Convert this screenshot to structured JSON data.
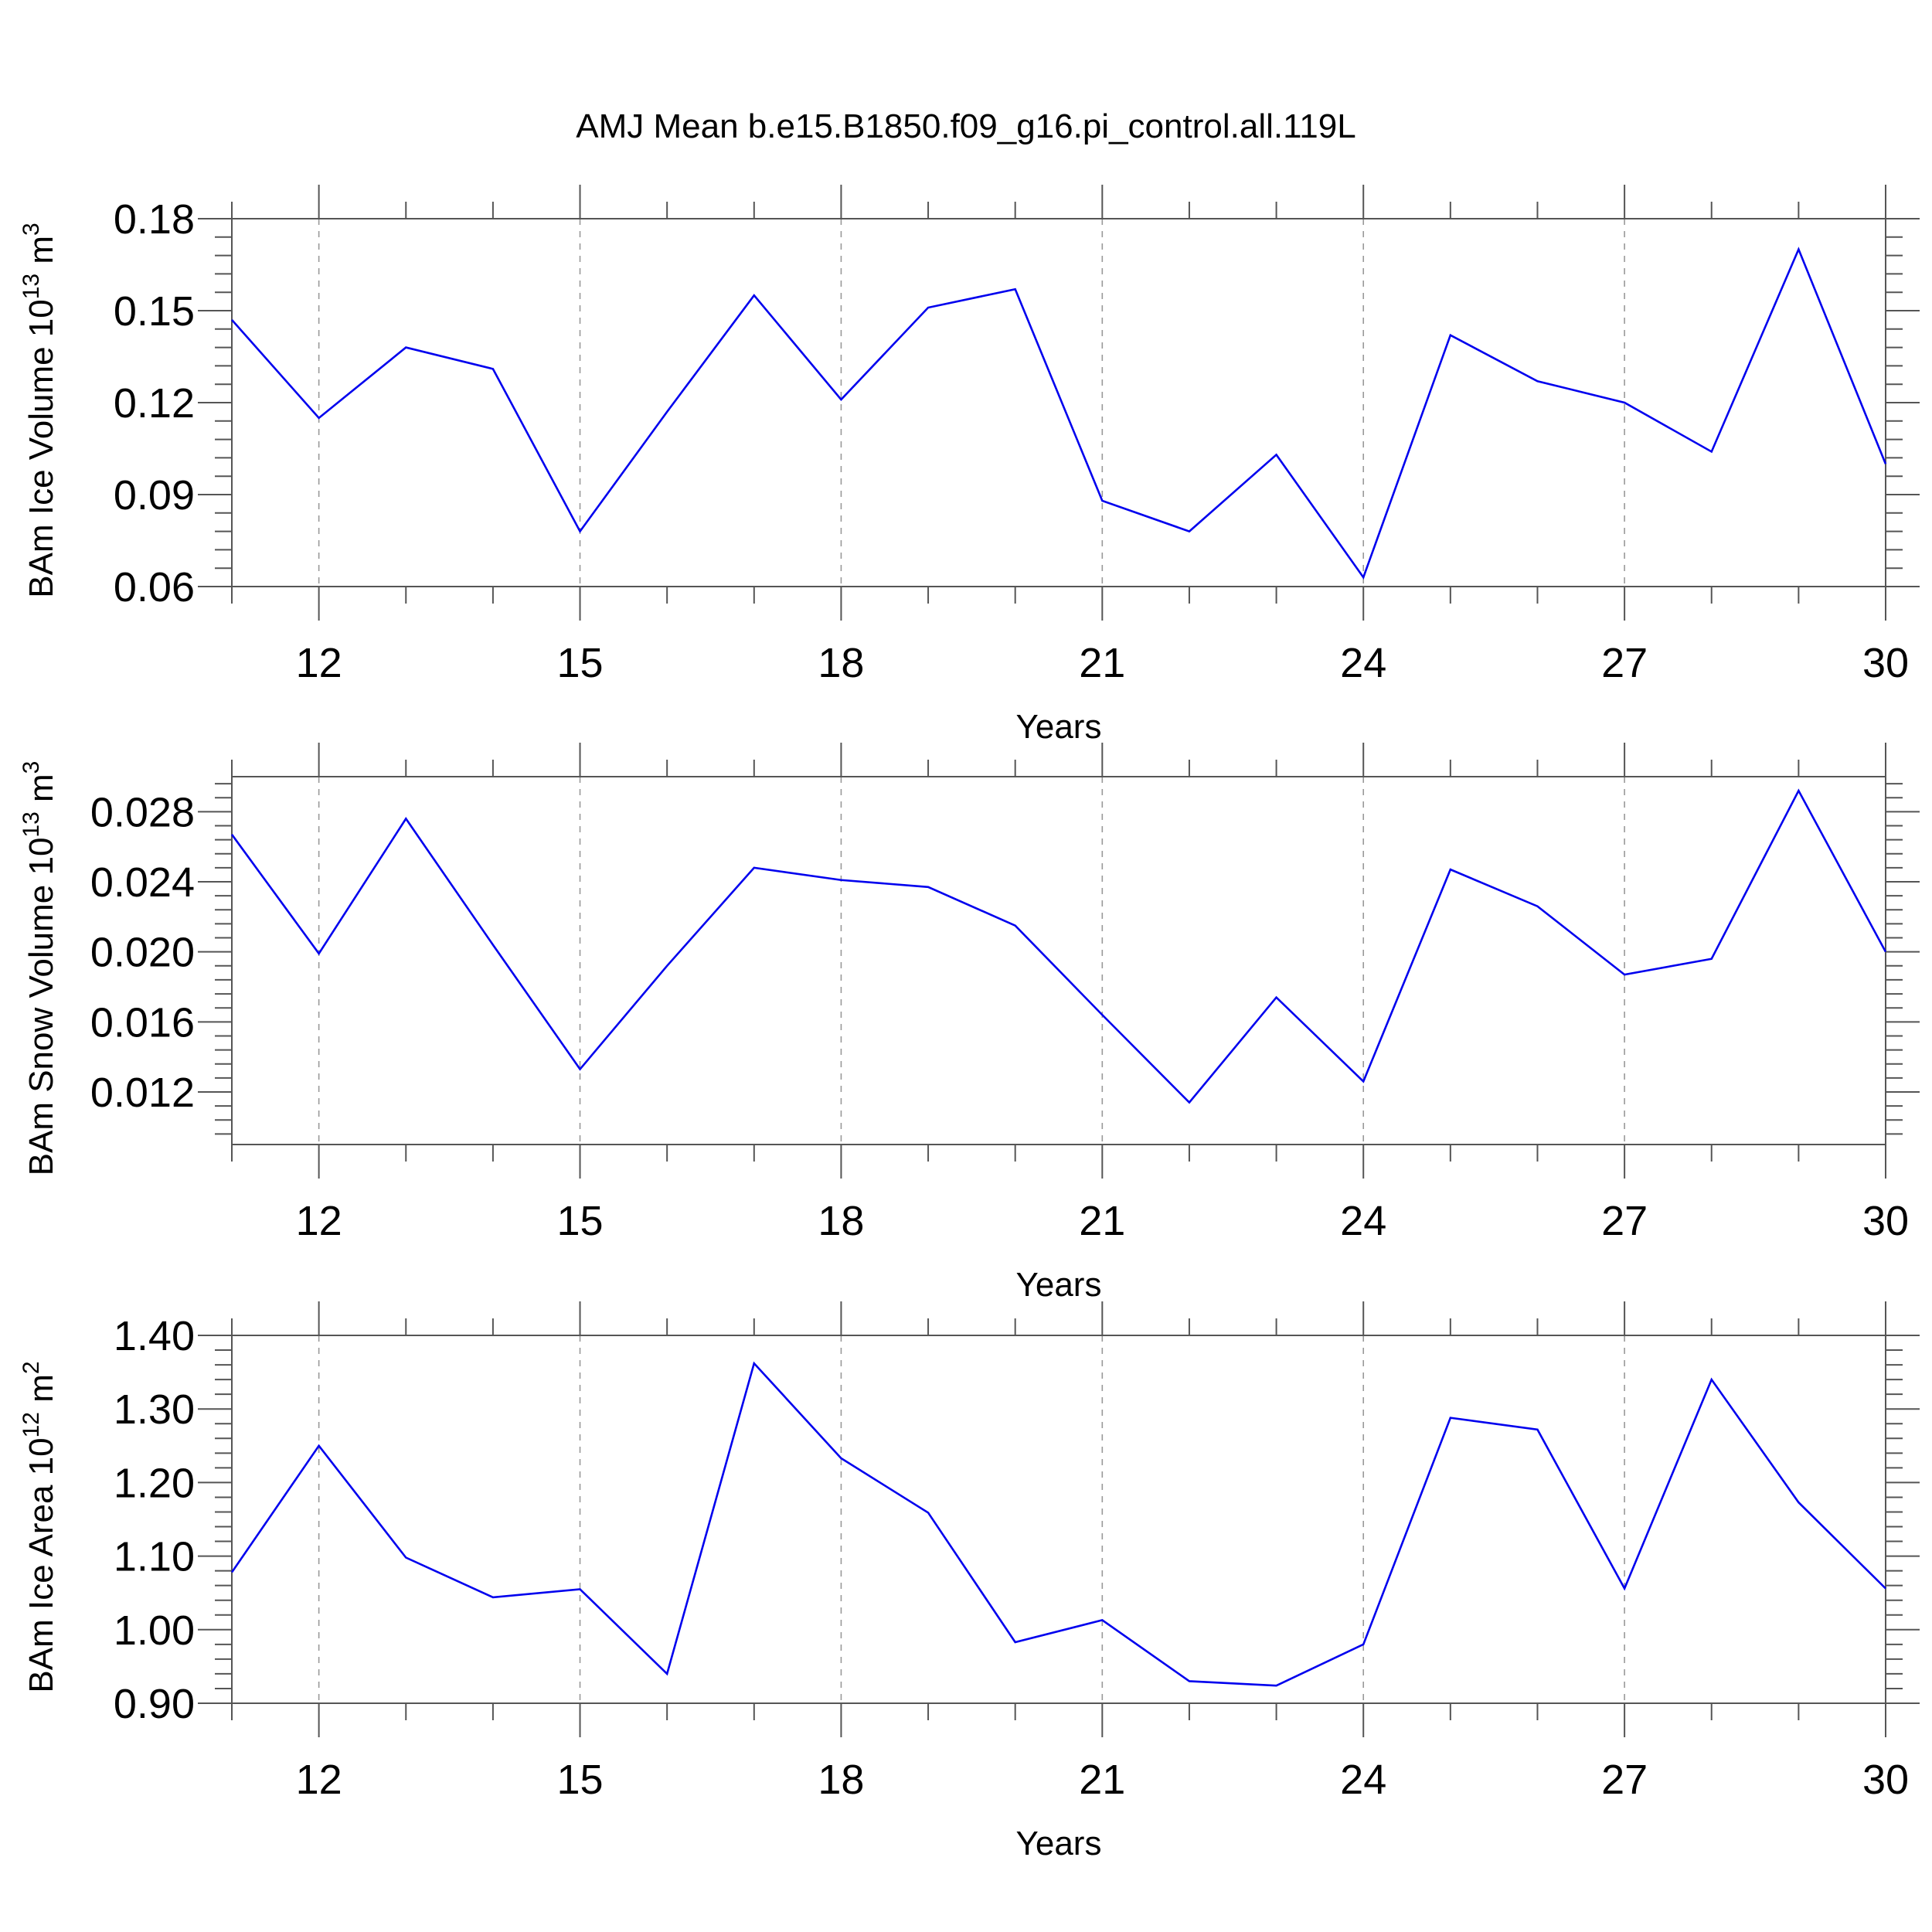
{
  "title": "AMJ Mean b.e15.B1850.f09_g16.pi_control.all.119L",
  "line_color": "#0000ee",
  "chart_data": [
    {
      "type": "line",
      "xlabel": "Years",
      "ylabel": {
        "text": "BAm Ice Volume 10",
        "exp": "13",
        "unit": " m",
        "unit_exp": "3"
      },
      "xlim": [
        11,
        30
      ],
      "ylim": [
        0.06,
        0.18
      ],
      "xticks": [
        12,
        15,
        18,
        21,
        24,
        27,
        30
      ],
      "xtick_labels": [
        "12",
        "15",
        "18",
        "21",
        "24",
        "27",
        "30"
      ],
      "yticks": [
        0.06,
        0.09,
        0.12,
        0.15,
        0.18
      ],
      "ytick_labels": [
        "0.06",
        "0.09",
        "0.12",
        "0.15",
        "0.18"
      ],
      "x": [
        11,
        12,
        13,
        14,
        15,
        16,
        17,
        18,
        19,
        20,
        21,
        22,
        23,
        24,
        25,
        26,
        27,
        28,
        29,
        30
      ],
      "series": [
        {
          "values": [
            0.147,
            0.115,
            0.138,
            0.131,
            0.078,
            0.117,
            0.155,
            0.121,
            0.151,
            0.157,
            0.088,
            0.078,
            0.103,
            0.063,
            0.142,
            0.127,
            0.12,
            0.104,
            0.17,
            0.1
          ]
        }
      ]
    },
    {
      "type": "line",
      "xlabel": "Years",
      "ylabel": {
        "text": "BAm Snow Volume 10",
        "exp": "13",
        "unit": " m",
        "unit_exp": "3"
      },
      "xlim": [
        11,
        30
      ],
      "ylim": [
        0.009,
        0.03
      ],
      "xticks": [
        12,
        15,
        18,
        21,
        24,
        27,
        30
      ],
      "xtick_labels": [
        "12",
        "15",
        "18",
        "21",
        "24",
        "27",
        "30"
      ],
      "yticks": [
        0.012,
        0.016,
        0.02,
        0.024,
        0.028
      ],
      "ytick_labels": [
        "0.012",
        "0.016",
        "0.020",
        "0.024",
        "0.028"
      ],
      "x": [
        11,
        12,
        13,
        14,
        15,
        16,
        17,
        18,
        19,
        20,
        21,
        22,
        23,
        24,
        25,
        26,
        27,
        28,
        29,
        30
      ],
      "series": [
        {
          "values": [
            0.0267,
            0.0199,
            0.0276,
            0.0204,
            0.0133,
            0.0192,
            0.0248,
            0.0241,
            0.0237,
            0.0215,
            0.0164,
            0.0114,
            0.0174,
            0.0126,
            0.0247,
            0.0226,
            0.0187,
            0.0196,
            0.0292,
            0.02
          ]
        }
      ]
    },
    {
      "type": "line",
      "xlabel": "Years",
      "ylabel": {
        "text": "BAm Ice Area 10",
        "exp": "12",
        "unit": " m",
        "unit_exp": "2"
      },
      "xlim": [
        11,
        30
      ],
      "ylim": [
        0.9,
        1.4
      ],
      "xticks": [
        12,
        15,
        18,
        21,
        24,
        27,
        30
      ],
      "xtick_labels": [
        "12",
        "15",
        "18",
        "21",
        "24",
        "27",
        "30"
      ],
      "yticks": [
        0.9,
        1.0,
        1.1,
        1.2,
        1.3,
        1.4
      ],
      "ytick_labels": [
        "0.90",
        "1.00",
        "1.10",
        "1.20",
        "1.30",
        "1.40"
      ],
      "x": [
        11,
        12,
        13,
        14,
        15,
        16,
        17,
        18,
        19,
        20,
        21,
        22,
        23,
        24,
        25,
        26,
        27,
        28,
        29,
        30
      ],
      "series": [
        {
          "values": [
            1.078,
            1.25,
            1.098,
            1.044,
            1.055,
            0.94,
            1.362,
            1.233,
            1.159,
            0.983,
            1.013,
            0.93,
            0.924,
            0.98,
            1.288,
            1.272,
            1.056,
            1.34,
            1.173,
            1.056
          ]
        }
      ]
    }
  ]
}
